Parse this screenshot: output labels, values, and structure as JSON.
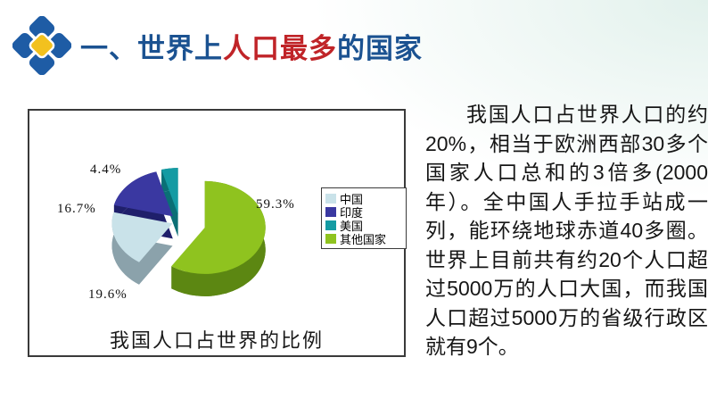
{
  "header": {
    "title_blue_1": "一、世界上",
    "title_red": "人口最多",
    "title_blue_2": "的国家",
    "title_blue_color": "#1B5291",
    "title_red_color": "#C02428",
    "logo_icon": "four-diamonds-logo",
    "logo_blue": "#1E5CA5",
    "logo_yellow": "#F2C11E"
  },
  "chart_data": {
    "type": "pie",
    "style": "3d-exploded-pie",
    "title": "我国人口占世界的比例",
    "legend_position": "right",
    "labels": [
      "中国",
      "印度",
      "美国",
      "其他国家"
    ],
    "values": [
      19.6,
      16.7,
      4.4,
      59.3
    ],
    "value_labels": [
      "19.6%",
      "16.7%",
      "4.4%",
      "59.3%"
    ],
    "colors": [
      "#C9E2E9",
      "#3A38A1",
      "#149BA3",
      "#8FC31F"
    ],
    "side_colors": [
      "#8BA2AB",
      "#1F1F6B",
      "#0A6F75",
      "#5C8712"
    ],
    "clockwise_order_from_top": [
      3,
      0,
      1,
      2
    ]
  },
  "body_text": "我国人口占世界人口的约20%，相当于欧洲西部30多个国家人口总和的3倍多(2000年）。全中国人手拉手站成一列，能环绕地球赤道40多圈。世界上目前共有约20个人口超过5000万的人口大国，而我国人口超过5000万的省级行政区就有9个。"
}
